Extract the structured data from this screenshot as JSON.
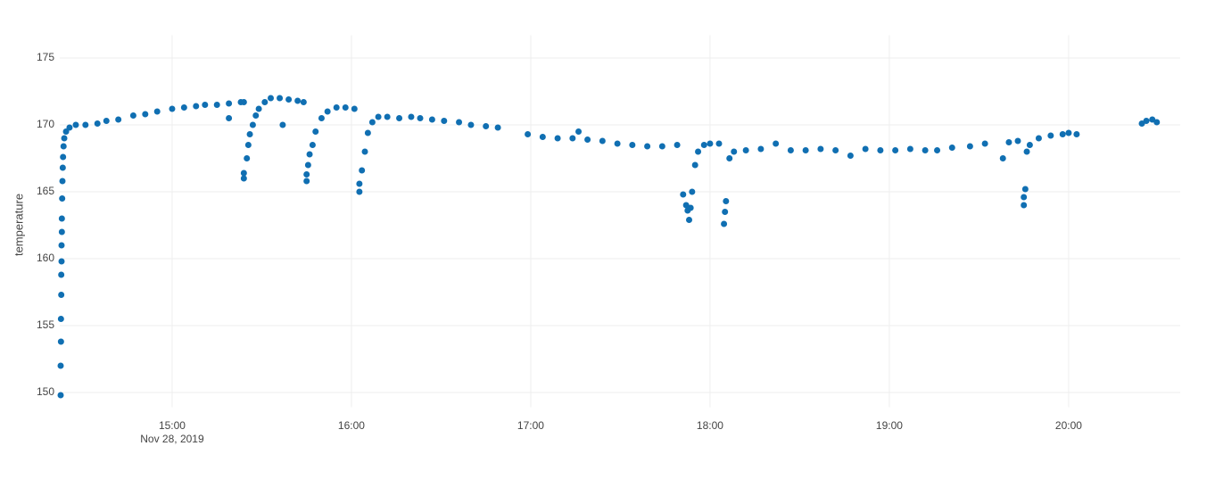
{
  "chart_data": {
    "type": "scatter",
    "y_label": "temperature",
    "color": "#106fb2",
    "grid": true,
    "x_date_label": "Nov 28, 2019",
    "xlim": [
      "14:22:24",
      "20:37:20"
    ],
    "xticks": [
      "15:00",
      "16:00",
      "17:00",
      "18:00",
      "19:00",
      "20:00"
    ],
    "ylim": [
      148.9,
      176.7
    ],
    "yticks": [
      150,
      155,
      160,
      165,
      170,
      175
    ],
    "x": [
      "14:22:42",
      "14:22:42",
      "14:22:48",
      "14:22:48",
      "14:22:54",
      "14:22:54",
      "14:23:00",
      "14:23:00",
      "14:23:06",
      "14:23:06",
      "14:23:12",
      "14:23:18",
      "14:23:24",
      "14:23:30",
      "14:23:40",
      "14:23:54",
      "14:24:30",
      "14:25:40",
      "14:27:46",
      "14:31",
      "14:35",
      "14:38",
      "14:42",
      "14:47",
      "14:51",
      "14:55",
      "15:00",
      "15:04",
      "15:08",
      "15:11",
      "15:15",
      "15:19",
      "15:19",
      "15:23",
      "15:24",
      "15:24",
      "15:24",
      "15:25",
      "15:25:30",
      "15:26",
      "15:27",
      "15:28",
      "15:29",
      "15:31",
      "15:33",
      "15:36",
      "15:37",
      "15:39",
      "15:42",
      "15:44",
      "15:45",
      "15:45",
      "15:45:30",
      "15:46",
      "15:47",
      "15:48",
      "15:50",
      "15:52",
      "15:55",
      "15:58",
      "16:01",
      "16:02:40",
      "16:02:40",
      "16:03:30",
      "16:04:30",
      "16:05:30",
      "16:07",
      "16:09",
      "16:12",
      "16:16",
      "16:20",
      "16:23",
      "16:27",
      "16:31",
      "16:36",
      "16:40",
      "16:45",
      "16:49",
      "16:59",
      "17:04",
      "17:09",
      "17:14",
      "17:16",
      "17:19",
      "17:24",
      "17:29",
      "17:34",
      "17:39",
      "17:44",
      "17:49",
      "17:51",
      "17:52",
      "17:52:30",
      "17:53",
      "17:53:30",
      "17:54",
      "17:55",
      "17:56",
      "17:58",
      "18:00",
      "18:03",
      "18:04:40",
      "18:05",
      "18:05:20",
      "18:06:30",
      "18:08",
      "18:12",
      "18:17",
      "18:22",
      "18:27",
      "18:32",
      "18:37",
      "18:42",
      "18:47",
      "18:52",
      "18:57",
      "19:02",
      "19:07",
      "19:12",
      "19:16",
      "19:21",
      "19:27",
      "19:32",
      "19:38",
      "19:40",
      "19:43",
      "19:45",
      "19:45",
      "19:45:30",
      "19:46",
      "19:47",
      "19:50",
      "19:54",
      "19:58",
      "20:00",
      "20:02:40",
      "20:24:30",
      "20:26",
      "20:28",
      "20:29:30"
    ],
    "values": [
      149.8,
      152.0,
      153.8,
      155.5,
      157.3,
      158.8,
      159.8,
      161.0,
      162.0,
      163.0,
      164.5,
      165.8,
      166.8,
      167.6,
      168.4,
      169.0,
      169.5,
      169.8,
      170.0,
      170.0,
      170.1,
      170.3,
      170.4,
      170.7,
      170.8,
      171.0,
      171.2,
      171.3,
      171.4,
      171.5,
      171.5,
      170.5,
      171.6,
      171.7,
      171.7,
      166.0,
      166.4,
      167.5,
      168.5,
      169.3,
      170.0,
      170.7,
      171.2,
      171.7,
      172.0,
      172.0,
      170.0,
      171.9,
      171.8,
      171.7,
      165.8,
      166.3,
      167.0,
      167.8,
      168.5,
      169.5,
      170.5,
      171.0,
      171.3,
      171.3,
      171.2,
      165.0,
      165.6,
      166.6,
      168.0,
      169.4,
      170.2,
      170.6,
      170.6,
      170.5,
      170.6,
      170.5,
      170.4,
      170.3,
      170.2,
      170.0,
      169.9,
      169.8,
      169.3,
      169.1,
      169.0,
      169.0,
      169.5,
      168.9,
      168.8,
      168.6,
      168.5,
      168.4,
      168.4,
      168.5,
      164.8,
      164.0,
      163.6,
      162.9,
      163.8,
      165.0,
      167.0,
      168.0,
      168.5,
      168.6,
      168.6,
      162.6,
      163.5,
      164.3,
      167.5,
      168.0,
      168.1,
      168.2,
      168.6,
      168.1,
      168.1,
      168.2,
      168.1,
      167.7,
      168.2,
      168.1,
      168.1,
      168.2,
      168.1,
      168.1,
      168.3,
      168.4,
      168.6,
      167.5,
      168.7,
      168.8,
      164.0,
      164.6,
      165.2,
      168.0,
      168.5,
      169.0,
      169.2,
      169.3,
      169.4,
      169.3,
      170.1,
      170.3,
      170.4,
      170.2
    ]
  }
}
